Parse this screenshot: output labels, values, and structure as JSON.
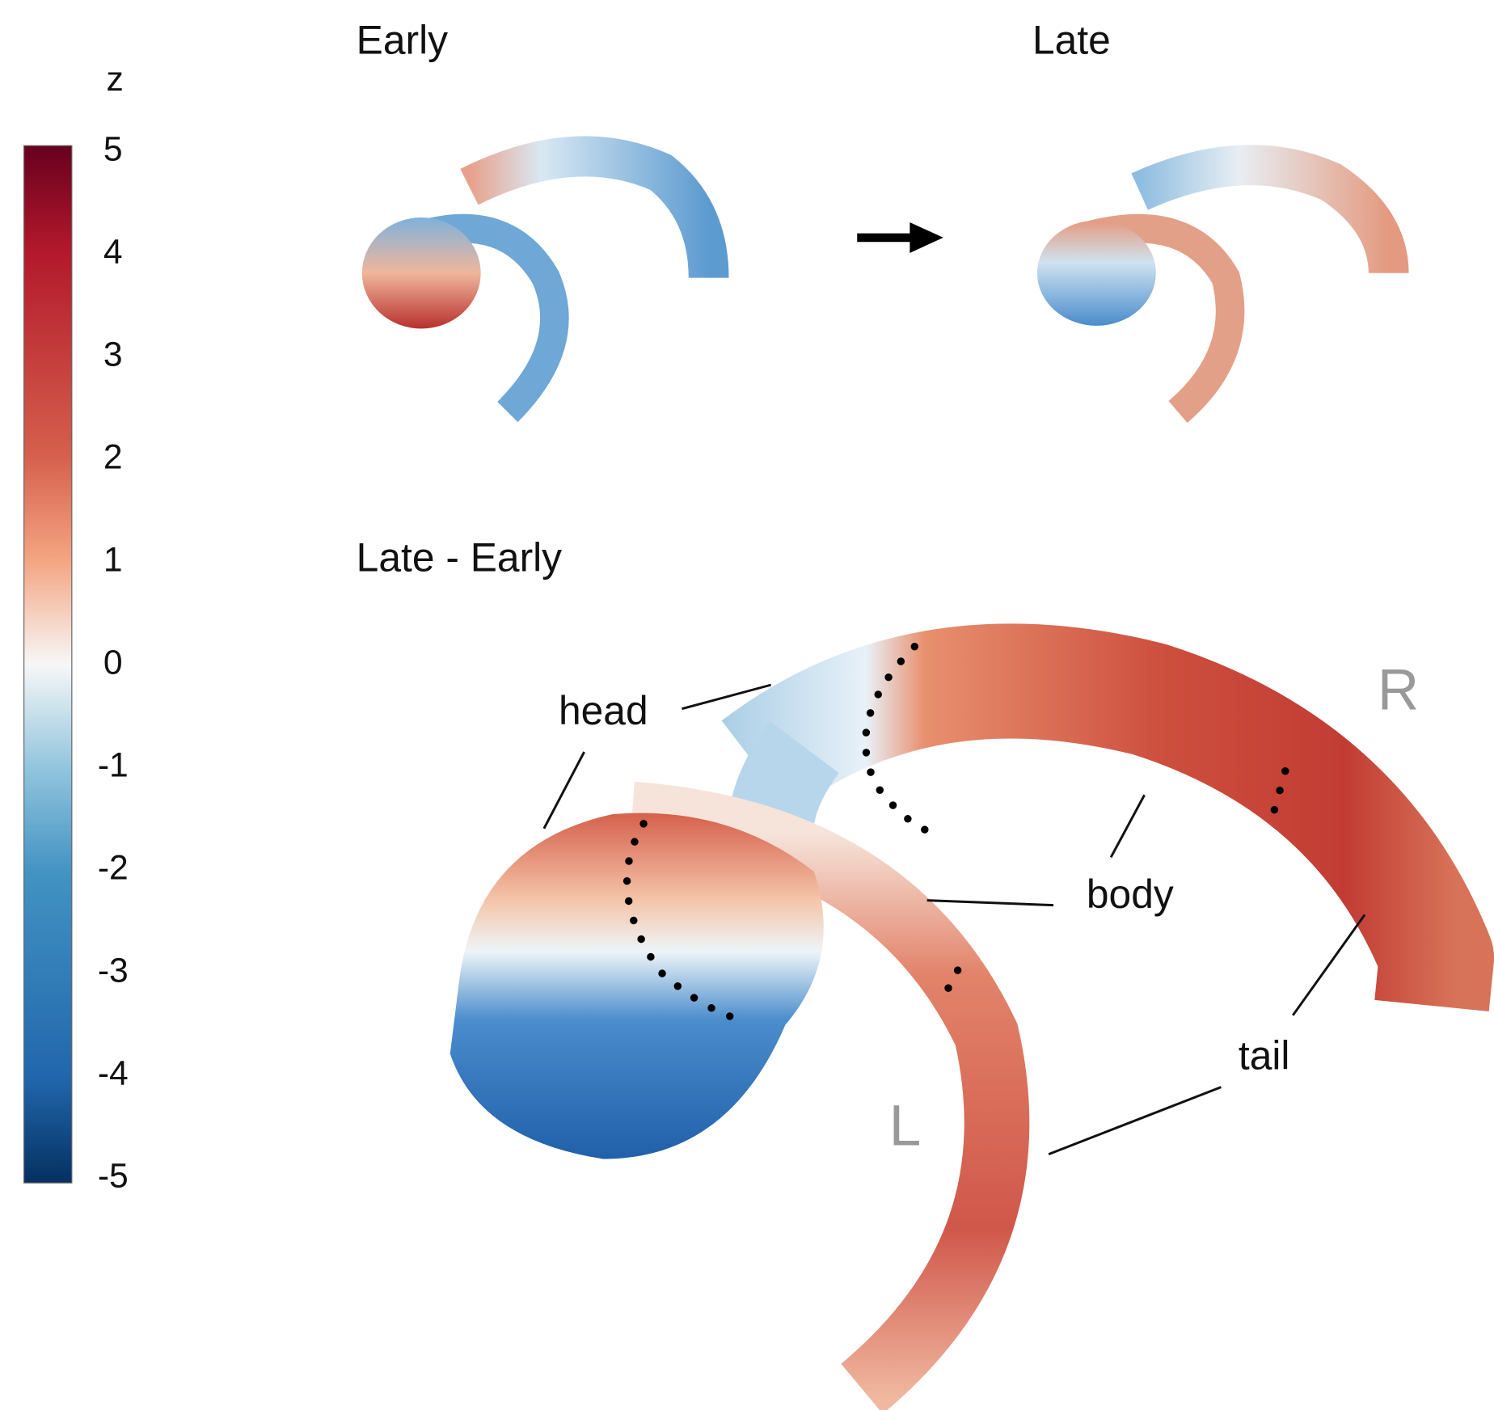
{
  "colorbar": {
    "label": "z",
    "range": [
      -5,
      5
    ],
    "ticks": [
      5,
      4,
      3,
      2,
      1,
      0,
      -1,
      -2,
      -3,
      -4,
      -5
    ]
  },
  "panels": {
    "early": {
      "title": "Early"
    },
    "late": {
      "title": "Late"
    },
    "difference": {
      "title": "Late - Early"
    }
  },
  "annotations": {
    "head": "head",
    "body": "body",
    "tail": "tail",
    "left": "L",
    "right": "R"
  }
}
